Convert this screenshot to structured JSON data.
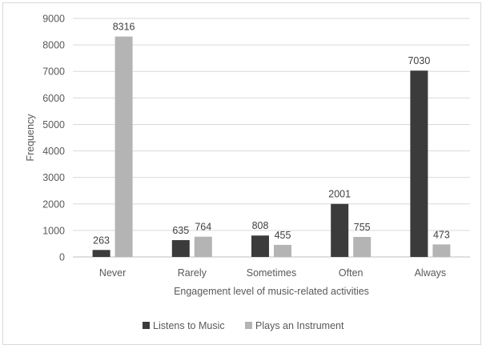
{
  "chart_data": {
    "type": "bar",
    "categories": [
      "Never",
      "Rarely",
      "Sometimes",
      "Often",
      "Always"
    ],
    "series": [
      {
        "name": "Listens to Music",
        "values": [
          263,
          635,
          808,
          2001,
          7030
        ],
        "color": "#3b3b3b"
      },
      {
        "name": "Plays an Instrument",
        "values": [
          8316,
          764,
          455,
          755,
          473
        ],
        "color": "#b4b4b4"
      }
    ],
    "title": "",
    "xlabel": "Engagement level of music-related activities",
    "ylabel": "Frequency",
    "ylim": [
      0,
      9000
    ],
    "yticks": [
      0,
      1000,
      2000,
      3000,
      4000,
      5000,
      6000,
      7000,
      8000,
      9000
    ],
    "grid": true,
    "legend_position": "bottom"
  }
}
